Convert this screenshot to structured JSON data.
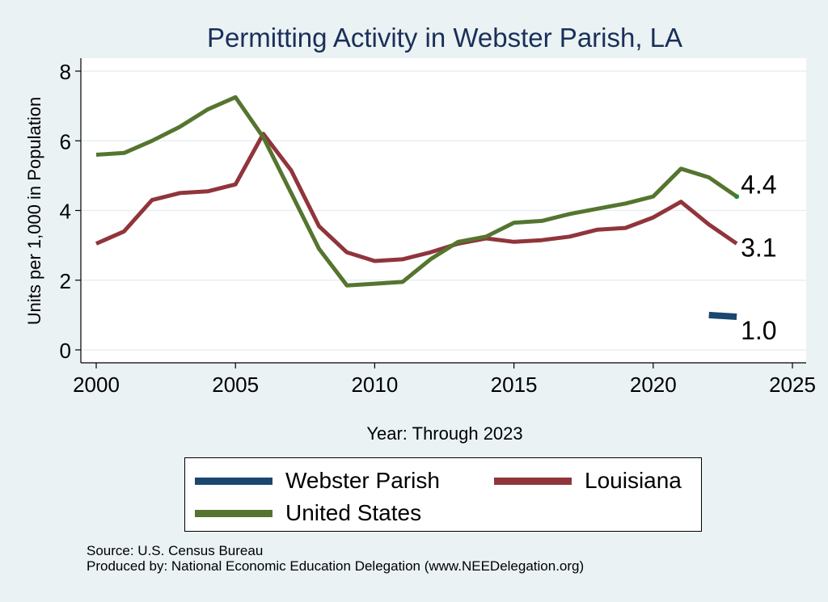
{
  "chart_data": {
    "type": "line",
    "title": "Permitting Activity in Webster Parish, LA",
    "xlabel": "Year: Through 2023",
    "ylabel": "Units per 1,000 in Population",
    "xlim": [
      2000,
      2025
    ],
    "ylim": [
      0,
      8
    ],
    "xticks": [
      "2000",
      "2005",
      "2010",
      "2015",
      "2020",
      "2025"
    ],
    "yticks": [
      "0",
      "2",
      "4",
      "6",
      "8"
    ],
    "grid": true,
    "legend_position": "bottom",
    "series": [
      {
        "name": "Webster Parish",
        "color": "#1a476f",
        "x": [
          2022,
          2023
        ],
        "values": [
          1.0,
          0.95
        ],
        "end_label": "1.0"
      },
      {
        "name": "Louisiana",
        "color": "#90353b",
        "x": [
          2000,
          2001,
          2002,
          2003,
          2004,
          2005,
          2006,
          2007,
          2008,
          2009,
          2010,
          2011,
          2012,
          2013,
          2014,
          2015,
          2016,
          2017,
          2018,
          2019,
          2020,
          2021,
          2022,
          2023
        ],
        "values": [
          3.05,
          3.4,
          4.3,
          4.5,
          4.55,
          4.75,
          6.2,
          5.15,
          3.55,
          2.8,
          2.55,
          2.6,
          2.8,
          3.05,
          3.2,
          3.1,
          3.15,
          3.25,
          3.45,
          3.5,
          3.8,
          4.25,
          3.6,
          3.05
        ],
        "end_label": "3.1"
      },
      {
        "name": "United States",
        "color": "#55752f",
        "x": [
          2000,
          2001,
          2002,
          2003,
          2004,
          2005,
          2006,
          2007,
          2008,
          2009,
          2010,
          2011,
          2012,
          2013,
          2014,
          2015,
          2016,
          2017,
          2018,
          2019,
          2020,
          2021,
          2022,
          2023
        ],
        "values": [
          5.6,
          5.65,
          6.0,
          6.4,
          6.9,
          7.25,
          6.1,
          4.5,
          2.9,
          1.85,
          1.9,
          1.95,
          2.6,
          3.1,
          3.25,
          3.65,
          3.7,
          3.9,
          4.05,
          4.2,
          4.4,
          5.2,
          4.95,
          4.4
        ],
        "end_label": "4.4"
      }
    ]
  },
  "notes": {
    "source": "Source: U.S. Census Bureau",
    "produced_by": "Produced by: National Economic Education Delegation (www.NEEDelegation.org)"
  },
  "colors": {
    "background": "#eaf2f3",
    "plot_background": "#ffffff",
    "grid": "#e7eff2",
    "title": "#1a2f5a"
  }
}
